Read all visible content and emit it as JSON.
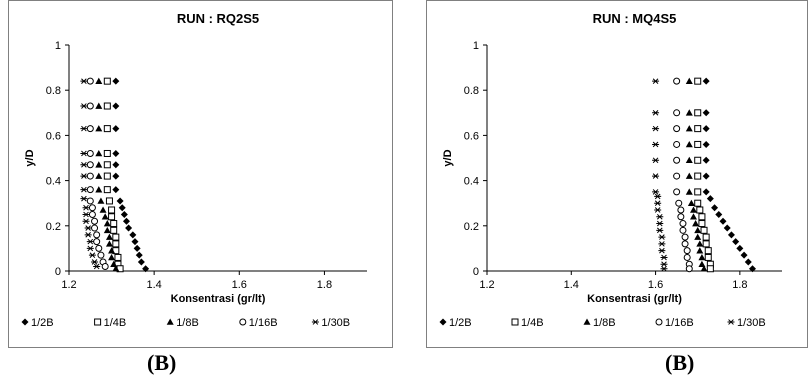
{
  "captions": [
    "(B)",
    "(B)"
  ],
  "chart_data": [
    {
      "type": "scatter",
      "title": "RUN : RQ2S5",
      "xlabel": "Konsentrasi (gr/lt)",
      "ylabel": "y/D",
      "xlim": [
        1.2,
        1.9
      ],
      "ylim": [
        0,
        1
      ],
      "xticks": [
        "1.2",
        "1.4",
        "1.6",
        "1.8"
      ],
      "yticks": [
        "0",
        "0.2",
        "0.4",
        "0.6",
        "0.8",
        "1"
      ],
      "grid": false,
      "legend_position": "bottom",
      "series": [
        {
          "name": "1/2B",
          "marker": "diamond-filled",
          "points": [
            [
              1.31,
              0.84
            ],
            [
              1.31,
              0.73
            ],
            [
              1.31,
              0.63
            ],
            [
              1.31,
              0.52
            ],
            [
              1.31,
              0.47
            ],
            [
              1.31,
              0.42
            ],
            [
              1.31,
              0.36
            ],
            [
              1.32,
              0.31
            ],
            [
              1.325,
              0.28
            ],
            [
              1.33,
              0.25
            ],
            [
              1.335,
              0.22
            ],
            [
              1.34,
              0.19
            ],
            [
              1.35,
              0.16
            ],
            [
              1.355,
              0.13
            ],
            [
              1.36,
              0.1
            ],
            [
              1.365,
              0.07
            ],
            [
              1.37,
              0.04
            ],
            [
              1.38,
              0.01
            ]
          ]
        },
        {
          "name": "1/4B",
          "marker": "square-open",
          "points": [
            [
              1.29,
              0.84
            ],
            [
              1.29,
              0.73
            ],
            [
              1.29,
              0.63
            ],
            [
              1.29,
              0.52
            ],
            [
              1.29,
              0.47
            ],
            [
              1.29,
              0.42
            ],
            [
              1.29,
              0.36
            ],
            [
              1.295,
              0.31
            ],
            [
              1.3,
              0.27
            ],
            [
              1.3,
              0.24
            ],
            [
              1.305,
              0.21
            ],
            [
              1.305,
              0.18
            ],
            [
              1.31,
              0.15
            ],
            [
              1.31,
              0.12
            ],
            [
              1.31,
              0.09
            ],
            [
              1.315,
              0.06
            ],
            [
              1.315,
              0.03
            ],
            [
              1.32,
              0.01
            ]
          ]
        },
        {
          "name": "1/8B",
          "marker": "triangle-filled",
          "points": [
            [
              1.27,
              0.84
            ],
            [
              1.27,
              0.73
            ],
            [
              1.27,
              0.63
            ],
            [
              1.27,
              0.52
            ],
            [
              1.27,
              0.47
            ],
            [
              1.27,
              0.42
            ],
            [
              1.27,
              0.36
            ],
            [
              1.275,
              0.31
            ],
            [
              1.28,
              0.27
            ],
            [
              1.285,
              0.24
            ],
            [
              1.29,
              0.21
            ],
            [
              1.29,
              0.18
            ],
            [
              1.295,
              0.15
            ],
            [
              1.295,
              0.12
            ],
            [
              1.3,
              0.09
            ],
            [
              1.3,
              0.06
            ],
            [
              1.305,
              0.03
            ],
            [
              1.31,
              0.01
            ]
          ]
        },
        {
          "name": "1/16B",
          "marker": "circle-open",
          "points": [
            [
              1.25,
              0.84
            ],
            [
              1.25,
              0.73
            ],
            [
              1.25,
              0.63
            ],
            [
              1.25,
              0.52
            ],
            [
              1.25,
              0.47
            ],
            [
              1.25,
              0.42
            ],
            [
              1.25,
              0.36
            ],
            [
              1.25,
              0.31
            ],
            [
              1.255,
              0.28
            ],
            [
              1.255,
              0.25
            ],
            [
              1.26,
              0.22
            ],
            [
              1.26,
              0.19
            ],
            [
              1.265,
              0.16
            ],
            [
              1.265,
              0.13
            ],
            [
              1.27,
              0.1
            ],
            [
              1.275,
              0.07
            ],
            [
              1.28,
              0.04
            ],
            [
              1.285,
              0.02
            ]
          ]
        },
        {
          "name": "1/30B",
          "marker": "asterisk",
          "points": [
            [
              1.235,
              0.84
            ],
            [
              1.235,
              0.73
            ],
            [
              1.235,
              0.63
            ],
            [
              1.235,
              0.52
            ],
            [
              1.235,
              0.47
            ],
            [
              1.235,
              0.42
            ],
            [
              1.235,
              0.36
            ],
            [
              1.235,
              0.32
            ],
            [
              1.24,
              0.28
            ],
            [
              1.24,
              0.25
            ],
            [
              1.24,
              0.22
            ],
            [
              1.245,
              0.19
            ],
            [
              1.245,
              0.16
            ],
            [
              1.25,
              0.13
            ],
            [
              1.25,
              0.1
            ],
            [
              1.255,
              0.07
            ],
            [
              1.26,
              0.04
            ],
            [
              1.265,
              0.02
            ]
          ]
        }
      ]
    },
    {
      "type": "scatter",
      "title": "RUN : MQ4S5",
      "xlabel": "Konsentrasi (gr/lt)",
      "ylabel": "y/D",
      "xlim": [
        1.2,
        1.9
      ],
      "ylim": [
        0,
        1
      ],
      "xticks": [
        "1.2",
        "1.4",
        "1.6",
        "1.8"
      ],
      "yticks": [
        "0",
        "0.2",
        "0.4",
        "0.6",
        "0.8",
        "1"
      ],
      "grid": false,
      "legend_position": "bottom",
      "series": [
        {
          "name": "1/2B",
          "marker": "diamond-filled",
          "points": [
            [
              1.72,
              0.84
            ],
            [
              1.72,
              0.7
            ],
            [
              1.72,
              0.63
            ],
            [
              1.72,
              0.56
            ],
            [
              1.72,
              0.49
            ],
            [
              1.72,
              0.42
            ],
            [
              1.72,
              0.35
            ],
            [
              1.73,
              0.32
            ],
            [
              1.74,
              0.28
            ],
            [
              1.75,
              0.25
            ],
            [
              1.76,
              0.22
            ],
            [
              1.77,
              0.19
            ],
            [
              1.78,
              0.16
            ],
            [
              1.79,
              0.13
            ],
            [
              1.8,
              0.1
            ],
            [
              1.81,
              0.07
            ],
            [
              1.82,
              0.04
            ],
            [
              1.83,
              0.01
            ]
          ]
        },
        {
          "name": "1/4B",
          "marker": "square-open",
          "points": [
            [
              1.7,
              0.84
            ],
            [
              1.7,
              0.7
            ],
            [
              1.7,
              0.63
            ],
            [
              1.7,
              0.56
            ],
            [
              1.7,
              0.49
            ],
            [
              1.7,
              0.42
            ],
            [
              1.7,
              0.35
            ],
            [
              1.7,
              0.3
            ],
            [
              1.705,
              0.27
            ],
            [
              1.71,
              0.24
            ],
            [
              1.71,
              0.21
            ],
            [
              1.715,
              0.18
            ],
            [
              1.72,
              0.15
            ],
            [
              1.72,
              0.12
            ],
            [
              1.725,
              0.09
            ],
            [
              1.725,
              0.06
            ],
            [
              1.73,
              0.03
            ],
            [
              1.73,
              0.01
            ]
          ]
        },
        {
          "name": "1/8B",
          "marker": "triangle-filled",
          "points": [
            [
              1.68,
              0.84
            ],
            [
              1.68,
              0.7
            ],
            [
              1.68,
              0.63
            ],
            [
              1.68,
              0.56
            ],
            [
              1.68,
              0.49
            ],
            [
              1.68,
              0.42
            ],
            [
              1.68,
              0.35
            ],
            [
              1.685,
              0.3
            ],
            [
              1.69,
              0.27
            ],
            [
              1.69,
              0.24
            ],
            [
              1.695,
              0.21
            ],
            [
              1.7,
              0.18
            ],
            [
              1.7,
              0.15
            ],
            [
              1.705,
              0.12
            ],
            [
              1.705,
              0.09
            ],
            [
              1.71,
              0.06
            ],
            [
              1.71,
              0.03
            ],
            [
              1.715,
              0.01
            ]
          ]
        },
        {
          "name": "1/16B",
          "marker": "circle-open",
          "points": [
            [
              1.65,
              0.84
            ],
            [
              1.65,
              0.7
            ],
            [
              1.65,
              0.63
            ],
            [
              1.65,
              0.56
            ],
            [
              1.65,
              0.49
            ],
            [
              1.65,
              0.42
            ],
            [
              1.65,
              0.35
            ],
            [
              1.655,
              0.3
            ],
            [
              1.66,
              0.27
            ],
            [
              1.66,
              0.24
            ],
            [
              1.665,
              0.21
            ],
            [
              1.665,
              0.18
            ],
            [
              1.67,
              0.15
            ],
            [
              1.67,
              0.12
            ],
            [
              1.675,
              0.09
            ],
            [
              1.675,
              0.06
            ],
            [
              1.68,
              0.03
            ],
            [
              1.68,
              0.01
            ]
          ]
        },
        {
          "name": "1/30B",
          "marker": "asterisk",
          "points": [
            [
              1.6,
              0.84
            ],
            [
              1.6,
              0.7
            ],
            [
              1.6,
              0.63
            ],
            [
              1.6,
              0.56
            ],
            [
              1.6,
              0.49
            ],
            [
              1.6,
              0.42
            ],
            [
              1.6,
              0.35
            ],
            [
              1.605,
              0.33
            ],
            [
              1.605,
              0.3
            ],
            [
              1.605,
              0.27
            ],
            [
              1.61,
              0.24
            ],
            [
              1.61,
              0.21
            ],
            [
              1.61,
              0.18
            ],
            [
              1.615,
              0.15
            ],
            [
              1.615,
              0.12
            ],
            [
              1.615,
              0.09
            ],
            [
              1.62,
              0.06
            ],
            [
              1.62,
              0.03
            ],
            [
              1.62,
              0.01
            ]
          ]
        }
      ]
    }
  ]
}
